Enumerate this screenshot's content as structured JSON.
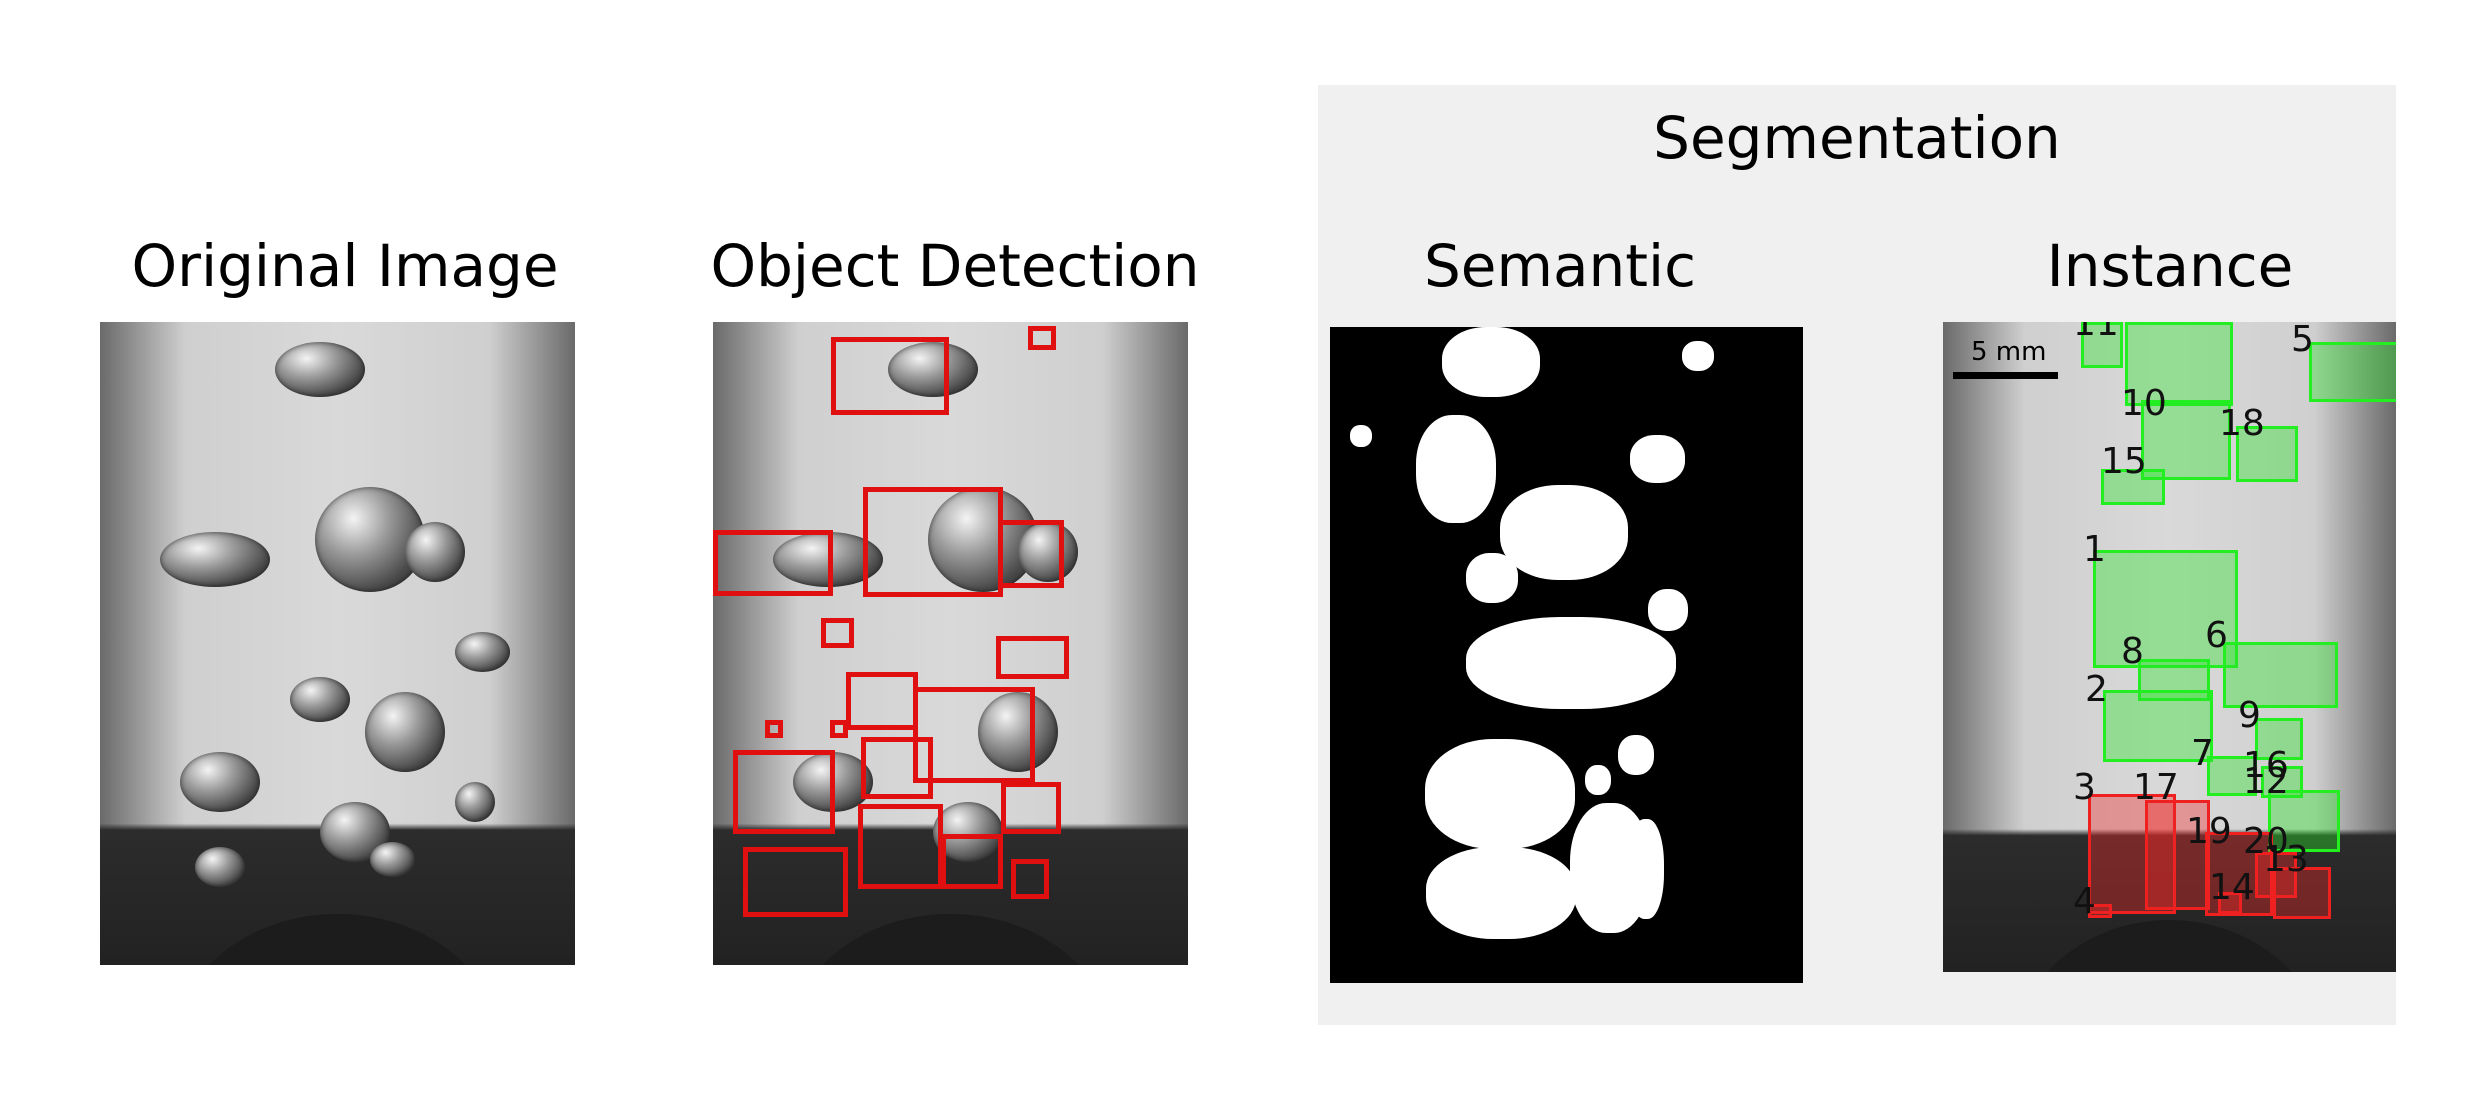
{
  "titles": {
    "original": "Original Image",
    "detection": "Object Detection",
    "segmentation": "Segmentation",
    "semantic": "Semantic",
    "instance": "Instance"
  },
  "scale_bar": {
    "label": "5 mm"
  },
  "instance_labels": [
    "1",
    "2",
    "3",
    "4",
    "5",
    "6",
    "7",
    "8",
    "9",
    "10",
    "11",
    "12",
    "13",
    "14",
    "15",
    "16",
    "17",
    "18",
    "19",
    "20"
  ],
  "colors": {
    "detection_box": "#e01010",
    "instance_ok": "#22ee22",
    "instance_flagged": "#ee2020",
    "segmentation_panel_bg": "#f0f0f0"
  }
}
